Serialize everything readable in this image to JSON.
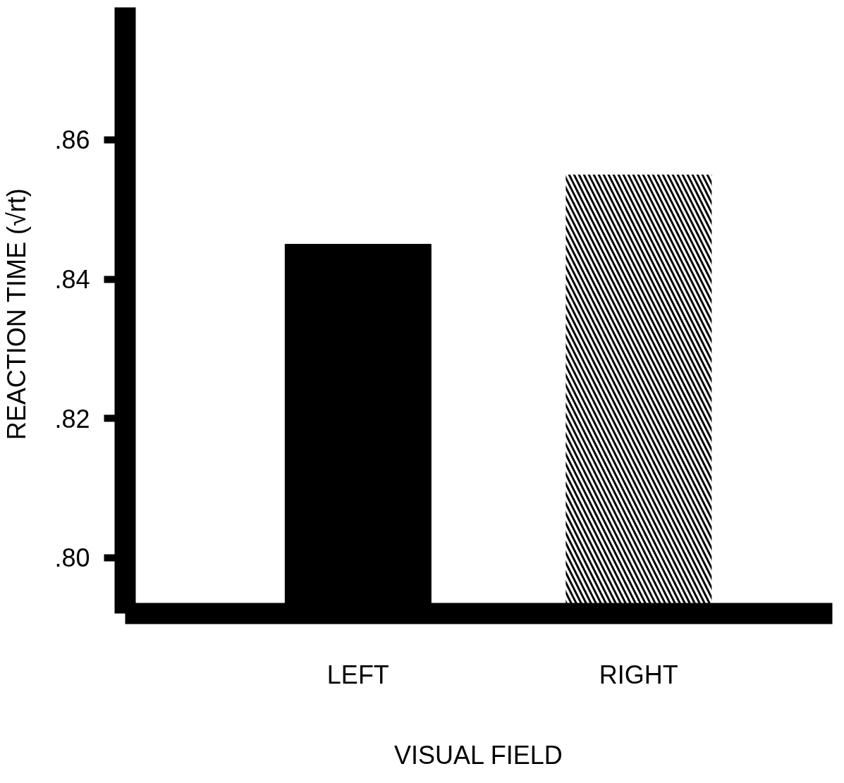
{
  "chart_data": {
    "type": "bar",
    "xlabel": "VISUAL FIELD",
    "ylabel": "REACTION TIME  (√rt)",
    "categories": [
      "LEFT",
      "RIGHT"
    ],
    "values": [
      0.845,
      0.855
    ],
    "colors": [
      "#000000",
      "#000000"
    ],
    "ylim": [
      0.792,
      0.879
    ],
    "yticks": [
      {
        "value": 0.8,
        "label": ".80"
      },
      {
        "value": 0.82,
        "label": ".82"
      },
      {
        "value": 0.84,
        "label": ".84"
      },
      {
        "value": 0.86,
        "label": ".86"
      }
    ],
    "grid": false
  }
}
